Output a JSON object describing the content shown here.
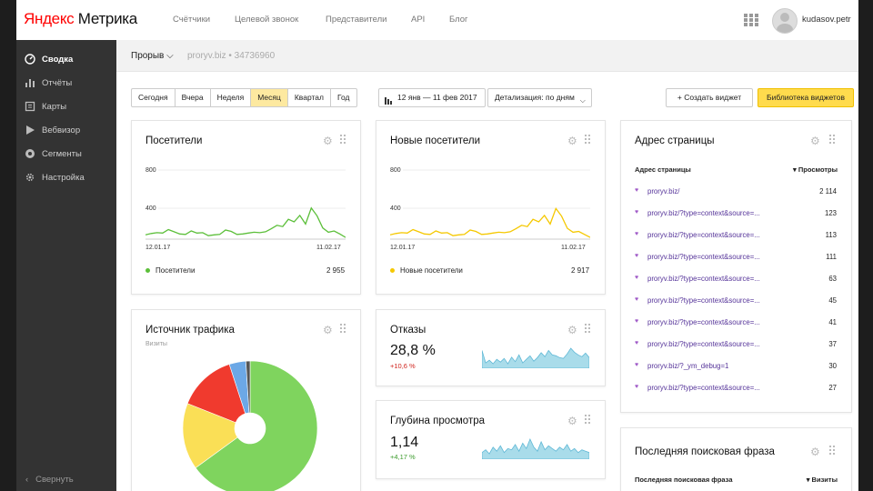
{
  "header": {
    "logo_ya": "Яндекс",
    "logo_rest": " Метрика",
    "nav": [
      "Счётчики",
      "Целевой звонок",
      "Представители",
      "API",
      "Блог"
    ],
    "user": "kudasov.petr"
  },
  "sidebar": {
    "items": [
      {
        "label": "Сводка",
        "icon": "gauge-icon",
        "active": true
      },
      {
        "label": "Отчёты",
        "icon": "bar-chart-icon",
        "active": false
      },
      {
        "label": "Карты",
        "icon": "map-icon",
        "active": false
      },
      {
        "label": "Вебвизор",
        "icon": "play-icon",
        "active": false
      },
      {
        "label": "Сегменты",
        "icon": "segments-icon",
        "active": false
      },
      {
        "label": "Настройка",
        "icon": "gear-icon",
        "active": false
      }
    ],
    "collapse_label": "Свернуть"
  },
  "subheader": {
    "counter": "Прорыв",
    "meta": "proryv.biz  •  34736960"
  },
  "toolbar": {
    "periods": [
      "Сегодня",
      "Вчера",
      "Неделя",
      "Месяц",
      "Квартал",
      "Год"
    ],
    "selected_period": "Месяц",
    "date_range": "12 янв — 11 фев 2017",
    "detail": "Детализация: по дням",
    "create_widget": "+ Создать виджет",
    "library": "Библиотека виджетов"
  },
  "visitors": {
    "title": "Посетители",
    "y_top": "800",
    "y_mid": "400",
    "x_start": "12.01.17",
    "x_end": "11.02.17",
    "legend": "Посетители",
    "total": "2 955",
    "color": "#5cbf3a",
    "chart_data": {
      "type": "line",
      "ylim": [
        0,
        800
      ],
      "values": [
        50,
        65,
        75,
        70,
        110,
        85,
        60,
        55,
        95,
        70,
        75,
        40,
        50,
        55,
        105,
        90,
        55,
        60,
        70,
        80,
        75,
        85,
        120,
        160,
        145,
        230,
        200,
        275,
        175,
        360,
        270,
        130,
        80,
        95,
        60,
        20
      ]
    }
  },
  "new_visitors": {
    "title": "Новые посетители",
    "y_top": "800",
    "y_mid": "400",
    "x_start": "12.01.17",
    "x_end": "11.02.17",
    "legend": "Новые посетители",
    "total": "2 917",
    "color": "#f5c800",
    "chart_data": {
      "type": "line",
      "ylim": [
        0,
        800
      ],
      "values": [
        50,
        65,
        75,
        70,
        110,
        85,
        60,
        55,
        95,
        70,
        75,
        40,
        50,
        55,
        105,
        90,
        55,
        60,
        70,
        80,
        75,
        85,
        120,
        160,
        145,
        230,
        200,
        275,
        175,
        355,
        265,
        125,
        80,
        90,
        55,
        20
      ]
    }
  },
  "traffic": {
    "title": "Источник трафика",
    "sub": "Визиты",
    "chart_data": {
      "type": "pie",
      "values": [
        65,
        16,
        14,
        4,
        1
      ],
      "colors": [
        "#7fd45e",
        "#fadf56",
        "#f03a2e",
        "#6ca8e6",
        "#555555"
      ]
    }
  },
  "bounces": {
    "title": "Отказы",
    "value": "28,8 %",
    "delta": "+10,6 %",
    "delta_color": "#d0241d",
    "spark": [
      40,
      12,
      18,
      10,
      20,
      14,
      22,
      10,
      25,
      15,
      30,
      12,
      20,
      28,
      16,
      24,
      35,
      26,
      40,
      30,
      28,
      24,
      22,
      32,
      45,
      36,
      30,
      26,
      34,
      24
    ]
  },
  "depth": {
    "title": "Глубина просмотра",
    "value": "1,14",
    "delta": "+4,17 %",
    "delta_color": "#3a9a2a",
    "spark": [
      10,
      14,
      8,
      18,
      12,
      20,
      10,
      16,
      14,
      22,
      12,
      24,
      16,
      30,
      18,
      12,
      26,
      14,
      20,
      16,
      12,
      18,
      14,
      22,
      12,
      16,
      10,
      14,
      12,
      10
    ]
  },
  "pages": {
    "title": "Адрес страницы",
    "col_name": "Адрес страницы",
    "col_value": "▾ Просмотры",
    "rows": [
      {
        "url": "proryv.biz/",
        "value": "2 114"
      },
      {
        "url": "proryv.biz/?type=context&source=...",
        "value": "123"
      },
      {
        "url": "proryv.biz/?type=context&source=...",
        "value": "113"
      },
      {
        "url": "proryv.biz/?type=context&source=...",
        "value": "111"
      },
      {
        "url": "proryv.biz/?type=context&source=...",
        "value": "63"
      },
      {
        "url": "proryv.biz/?type=context&source=...",
        "value": "45"
      },
      {
        "url": "proryv.biz/?type=context&source=...",
        "value": "41"
      },
      {
        "url": "proryv.biz/?type=context&source=...",
        "value": "37"
      },
      {
        "url": "proryv.biz/?_ym_debug=1",
        "value": "30"
      },
      {
        "url": "proryv.biz/?type=context&source=...",
        "value": "27"
      }
    ]
  },
  "search": {
    "title": "Последняя поисковая фраза",
    "col_name": "Последняя поисковая фраза",
    "col_value": "▾ Визиты"
  }
}
